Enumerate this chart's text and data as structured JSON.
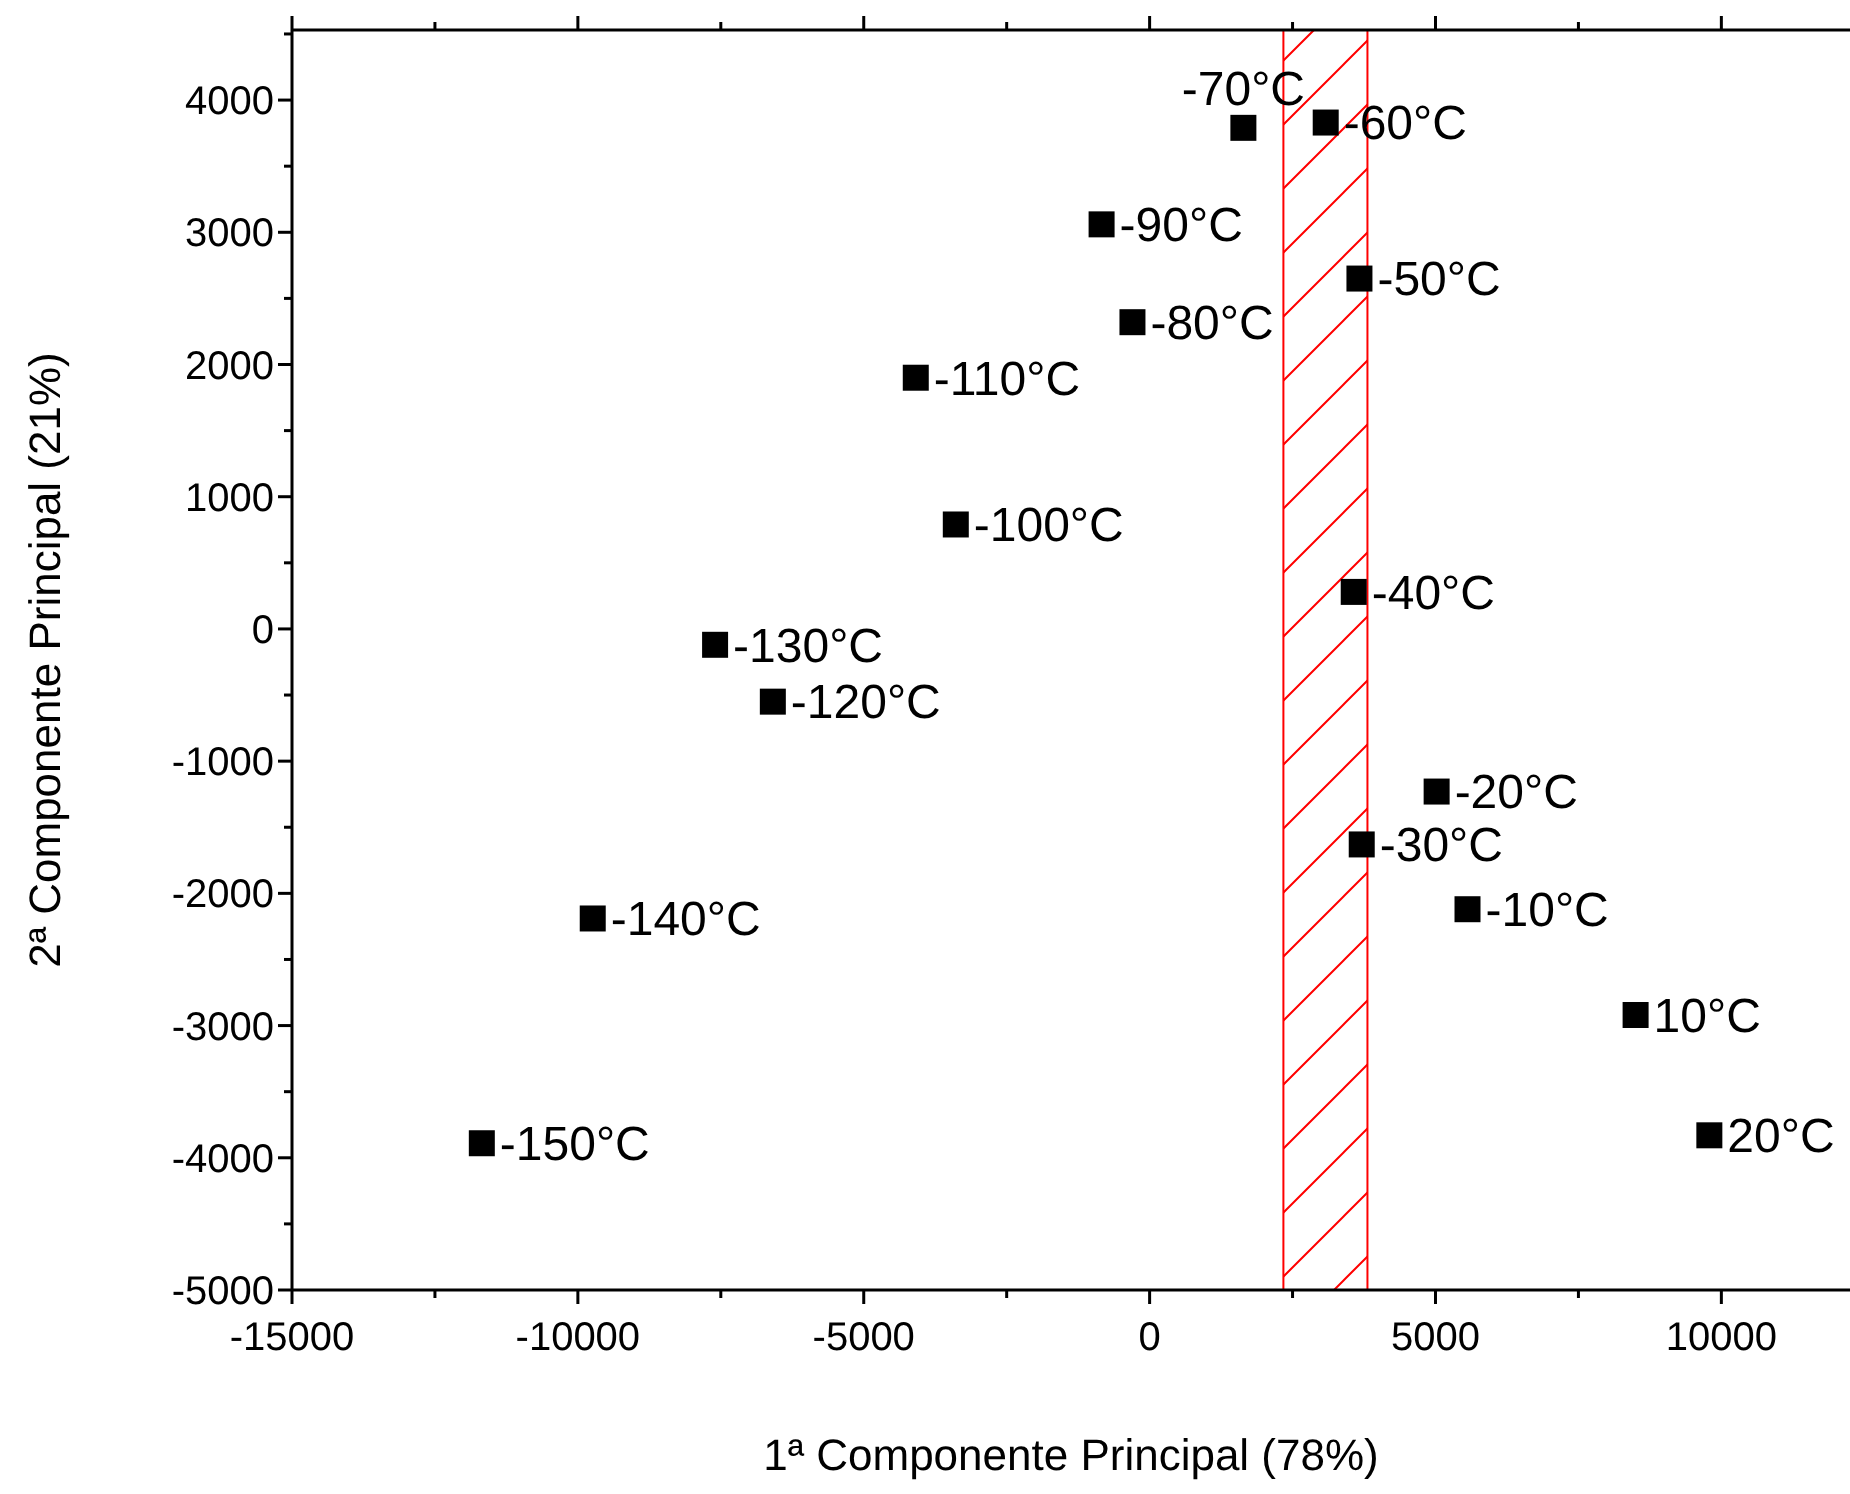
{
  "chart_data": {
    "type": "scatter",
    "xlabel": "1ª Componente Principal (78%)",
    "ylabel": "2ª Componente Principal (21%)",
    "x": [
      1640,
      3080,
      -840,
      3670,
      -300,
      -4090,
      -3390,
      3570,
      -7600,
      -6590,
      5020,
      3710,
      -9740,
      5560,
      8500,
      -11680,
      9790
    ],
    "series": [
      {
        "color": "#000000",
        "values": [
          3790,
          3830,
          3060,
          2650,
          2320,
          1900,
          790,
          280,
          -120,
          -550,
          -1230,
          -1630,
          -2190,
          -2120,
          -2920,
          -3890,
          -3830
        ]
      }
    ],
    "marker": "square",
    "grid": false,
    "xlim": [
      -15000,
      12250
    ],
    "ylim": [
      -5000,
      4530
    ],
    "xticks": [
      -15000,
      {
        "value": -12500,
        "label": null
      },
      -10000,
      {
        "value": -7500,
        "label": null
      },
      -5000,
      {
        "value": -2500,
        "label": null
      },
      0,
      {
        "value": 2500,
        "label": null
      },
      5000,
      {
        "value": 7500,
        "label": null
      },
      10000
    ],
    "yticks": [
      -5000,
      {
        "value": -4500,
        "label": null
      },
      -4000,
      {
        "value": -3500,
        "label": null
      },
      -3000,
      {
        "value": -2500,
        "label": null
      },
      -2000,
      {
        "value": -1500,
        "label": null
      },
      -1000,
      {
        "value": -500,
        "label": null
      },
      0,
      {
        "value": 500,
        "label": null
      },
      1000,
      {
        "value": 1500,
        "label": null
      },
      2000,
      {
        "value": 2500,
        "label": null
      },
      3000,
      {
        "value": 3500,
        "label": null
      },
      4000,
      {
        "value": 4500,
        "label": null
      }
    ],
    "bands": [
      {
        "axis": "x",
        "from": 2340,
        "to": 3810,
        "color": "#ff0000"
      }
    ],
    "annotations": [
      {
        "text": "-70°C",
        "x": 1640,
        "y": 3790
      },
      {
        "text": "-60°C",
        "x": 3080,
        "y": 3830
      },
      {
        "text": "-90°C",
        "x": -840,
        "y": 3060
      },
      {
        "text": "-50°C",
        "x": 3670,
        "y": 2650
      },
      {
        "text": "-80°C",
        "x": -300,
        "y": 2320
      },
      {
        "text": "-110°C",
        "x": -4090,
        "y": 1900
      },
      {
        "text": "-100°C",
        "x": -3390,
        "y": 790
      },
      {
        "text": "-40°C",
        "x": 3570,
        "y": 280
      },
      {
        "text": "-130°C",
        "x": -7600,
        "y": -120
      },
      {
        "text": "-120°C",
        "x": -6590,
        "y": -550
      },
      {
        "text": "-20°C",
        "x": 5020,
        "y": -1230
      },
      {
        "text": "-30°C",
        "x": 3710,
        "y": -1630
      },
      {
        "text": "-140°C",
        "x": -9740,
        "y": -2190
      },
      {
        "text": "-10°C",
        "x": 5560,
        "y": -2120
      },
      {
        "text": "10°C",
        "x": 8500,
        "y": -2920
      },
      {
        "text": "-150°C",
        "x": -11680,
        "y": -3890
      },
      {
        "text": "20°C",
        "x": 9790,
        "y": -3830
      }
    ]
  }
}
